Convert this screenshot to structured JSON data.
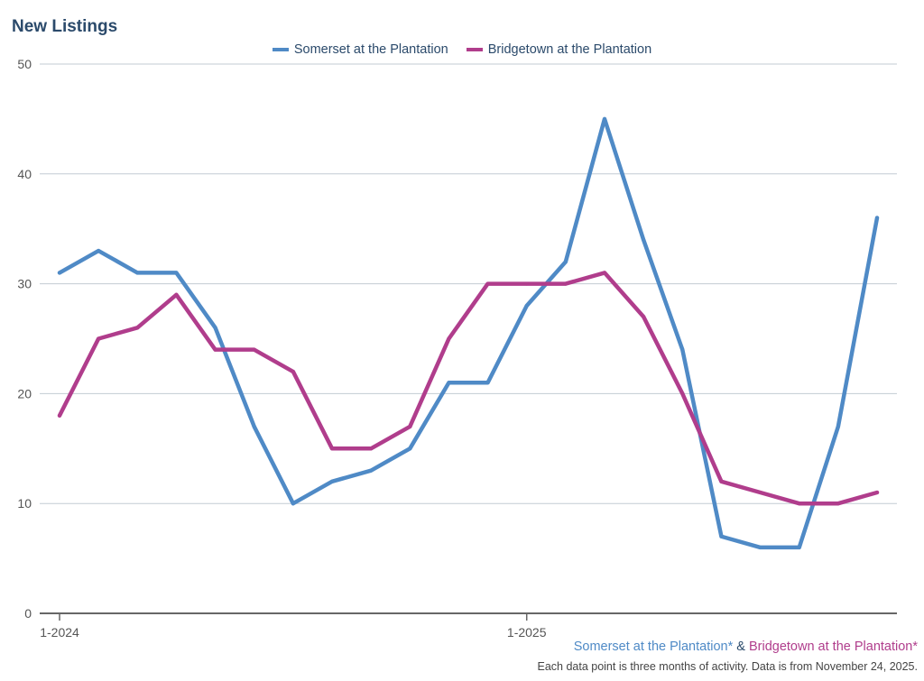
{
  "chart_data": {
    "type": "line",
    "title": "New Listings",
    "categories": [
      "1-2024",
      "2-2024",
      "3-2024",
      "4-2024",
      "5-2024",
      "6-2024",
      "7-2024",
      "8-2024",
      "9-2024",
      "10-2024",
      "11-2024",
      "12-2024",
      "1-2025",
      "2-2025",
      "3-2025",
      "4-2025",
      "5-2025",
      "6-2025",
      "7-2025",
      "8-2025",
      "9-2025",
      "10-2025"
    ],
    "xticks": [
      "1-2024",
      "1-2025"
    ],
    "ylim": [
      0,
      50
    ],
    "yticks": [
      0,
      10,
      20,
      30,
      40,
      50
    ],
    "grid": true,
    "legend_position": "top",
    "series": [
      {
        "name": "Somerset at the Plantation",
        "color": "#4f8ac6",
        "values": [
          31,
          33,
          31,
          31,
          26,
          17,
          10,
          12,
          13,
          15,
          21,
          21,
          28,
          32,
          45,
          34,
          24,
          7,
          6,
          6,
          17,
          36
        ]
      },
      {
        "name": "Bridgetown at the Plantation",
        "color": "#b03d8c",
        "values": [
          18,
          25,
          26,
          29,
          24,
          24,
          22,
          15,
          15,
          17,
          25,
          30,
          30,
          30,
          31,
          27,
          20,
          12,
          11,
          10,
          10,
          11
        ]
      }
    ]
  },
  "footer": {
    "series1": "Somerset at the Plantation*",
    "separator": " & ",
    "series2": "Bridgetown at the Plantation*",
    "note": "Each data point is three months of activity. Data is from November 24, 2025."
  }
}
